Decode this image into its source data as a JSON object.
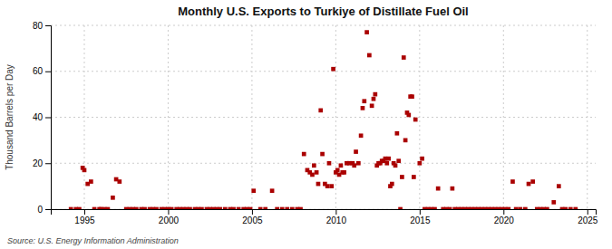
{
  "chart_data": {
    "type": "scatter",
    "title": "Monthly U.S. Exports to Turkiye of Distillate Fuel Oil",
    "ylabel": "Thousand Barrels per Day",
    "source": "Source: U.S. Energy Information Administration",
    "color": "#aa0000",
    "marker": "square",
    "grid": true,
    "xlim": [
      1993.0,
      2025.5
    ],
    "ylim": [
      0,
      80
    ],
    "xticks": [
      1995,
      2000,
      2005,
      2010,
      2015,
      2020,
      2025
    ],
    "yticks": [
      0,
      20,
      40,
      60,
      80
    ],
    "x": [
      1994.2,
      1994.5,
      1994.7,
      1994.9,
      1995.0,
      1995.2,
      1995.4,
      1995.6,
      1995.9,
      1996.0,
      1996.2,
      1996.4,
      1996.7,
      1996.9,
      1997.1,
      1997.5,
      1997.7,
      1997.9,
      1998.1,
      1998.4,
      1998.6,
      1998.9,
      1999.1,
      1999.3,
      1999.6,
      1999.8,
      2000.0,
      2000.2,
      2000.5,
      2000.7,
      2000.9,
      2001.1,
      2001.3,
      2001.6,
      2001.8,
      2002.0,
      2002.3,
      2002.5,
      2002.7,
      2002.9,
      2003.1,
      2003.4,
      2003.7,
      2003.9,
      2004.2,
      2004.5,
      2004.7,
      2004.9,
      2005.1,
      2005.5,
      2005.8,
      2006.2,
      2006.5,
      2006.8,
      2007.1,
      2007.4,
      2007.7,
      2007.9,
      2008.1,
      2008.3,
      2008.45,
      2008.6,
      2008.7,
      2008.85,
      2008.95,
      2009.1,
      2009.2,
      2009.35,
      2009.5,
      2009.6,
      2009.75,
      2009.85,
      2010.0,
      2010.1,
      2010.2,
      2010.3,
      2010.4,
      2010.5,
      2010.65,
      2010.8,
      2011.0,
      2011.1,
      2011.2,
      2011.35,
      2011.5,
      2011.6,
      2011.7,
      2011.85,
      2012.0,
      2012.15,
      2012.25,
      2012.35,
      2012.45,
      2012.55,
      2012.65,
      2012.75,
      2012.85,
      2012.95,
      2013.05,
      2013.15,
      2013.25,
      2013.35,
      2013.45,
      2013.55,
      2013.65,
      2013.75,
      2013.85,
      2013.95,
      2014.05,
      2014.15,
      2014.25,
      2014.35,
      2014.45,
      2014.55,
      2014.65,
      2014.75,
      2015.0,
      2015.15,
      2015.3,
      2015.5,
      2015.7,
      2015.9,
      2016.1,
      2016.4,
      2016.6,
      2016.8,
      2016.95,
      2017.1,
      2017.3,
      2017.5,
      2017.7,
      2017.9,
      2018.1,
      2018.3,
      2018.5,
      2018.7,
      2018.9,
      2019.1,
      2019.3,
      2019.5,
      2019.7,
      2019.9,
      2020.1,
      2020.3,
      2020.55,
      2020.75,
      2021.0,
      2021.3,
      2021.5,
      2021.75,
      2022.0,
      2022.2,
      2022.4,
      2022.6,
      2023.0,
      2023.3,
      2023.5,
      2023.7,
      2024.0,
      2024.3
    ],
    "values": [
      0,
      0,
      0,
      18,
      17,
      11,
      12,
      0,
      0,
      0,
      0,
      0,
      5,
      13,
      12,
      0,
      0,
      0,
      0,
      0,
      0,
      0,
      0,
      0,
      0,
      0,
      0,
      0,
      0,
      0,
      0,
      0,
      0,
      0,
      0,
      0,
      0,
      0,
      0,
      0,
      0,
      0,
      0,
      0,
      0,
      0,
      0,
      0,
      8,
      0,
      0,
      8,
      0,
      0,
      0,
      0,
      0,
      0,
      24,
      17,
      16,
      15,
      19,
      16,
      11,
      43,
      24,
      11,
      10,
      20,
      10,
      61,
      16,
      17,
      15,
      19,
      16,
      16,
      20,
      20,
      20,
      19,
      25,
      20,
      32,
      44,
      47,
      77,
      67,
      45,
      48,
      50,
      19,
      20,
      20,
      21,
      21,
      22,
      20,
      22,
      10,
      11,
      20,
      19,
      33,
      21,
      0,
      14,
      66,
      30,
      42,
      41,
      49,
      49,
      14,
      39,
      20,
      22,
      0,
      0,
      0,
      0,
      9,
      0,
      0,
      0,
      9,
      0,
      0,
      0,
      0,
      0,
      0,
      0,
      0,
      0,
      0,
      0,
      0,
      0,
      0,
      0,
      0,
      0,
      12,
      0,
      0,
      0,
      11,
      12,
      0,
      0,
      0,
      0,
      3,
      10,
      0,
      0,
      0,
      0
    ]
  }
}
